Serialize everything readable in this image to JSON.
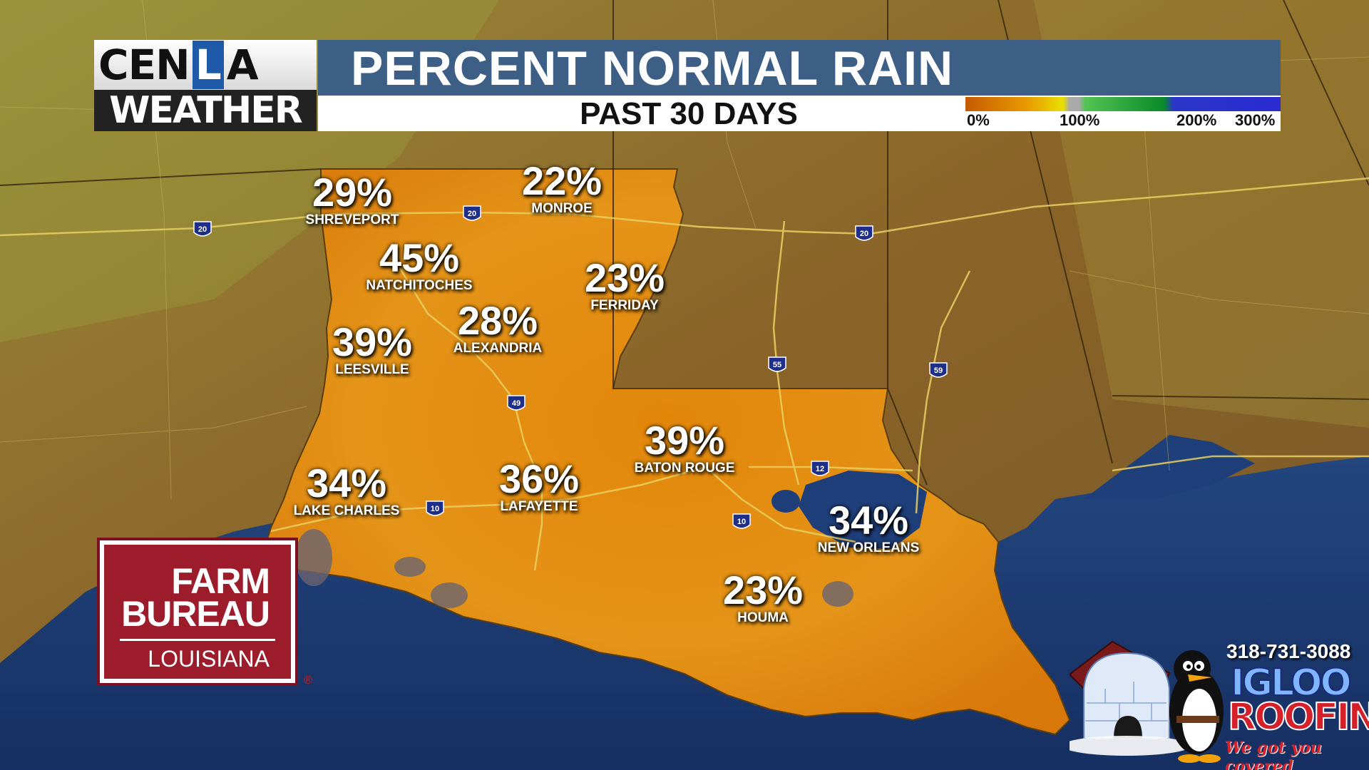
{
  "header": {
    "logo_top_a": "CEN",
    "logo_top_b": "L",
    "logo_top_c": "A",
    "logo_bottom": "WEATHER",
    "title": "PERCENT NORMAL RAIN",
    "subtitle": "PAST 30 DAYS"
  },
  "legend": {
    "labels": [
      "0%",
      "100%",
      "200%",
      "300%"
    ]
  },
  "cities": [
    {
      "name": "SHREVEPORT",
      "percent": "29%"
    },
    {
      "name": "MONROE",
      "percent": "22%"
    },
    {
      "name": "NATCHITOCHES",
      "percent": "45%"
    },
    {
      "name": "FERRIDAY",
      "percent": "23%"
    },
    {
      "name": "ALEXANDRIA",
      "percent": "28%"
    },
    {
      "name": "LEESVILLE",
      "percent": "39%"
    },
    {
      "name": "BATON ROUGE",
      "percent": "39%"
    },
    {
      "name": "LAKE CHARLES",
      "percent": "34%"
    },
    {
      "name": "LAFAYETTE",
      "percent": "36%"
    },
    {
      "name": "NEW ORLEANS",
      "percent": "34%"
    },
    {
      "name": "HOUMA",
      "percent": "23%"
    }
  ],
  "interstates": [
    "20",
    "20",
    "20",
    "55",
    "59",
    "49",
    "12",
    "10",
    "10"
  ],
  "sponsors": {
    "farm_line1": "FARM",
    "farm_line2": "BUREAU",
    "farm_line3": "LOUISIANA",
    "farm_mark": "®",
    "igloo_phone": "318-731-3088",
    "igloo_name1": "IGLOO",
    "igloo_name2": "ROOFING",
    "igloo_tagline": "We got you covered"
  },
  "colors": {
    "title_bar": "#3d5f86",
    "louisiana_fill": "#e08a14",
    "gulf": "#1f3f7a",
    "land": "#8a6a2a",
    "farm_bureau_red": "#9c1c2c"
  }
}
